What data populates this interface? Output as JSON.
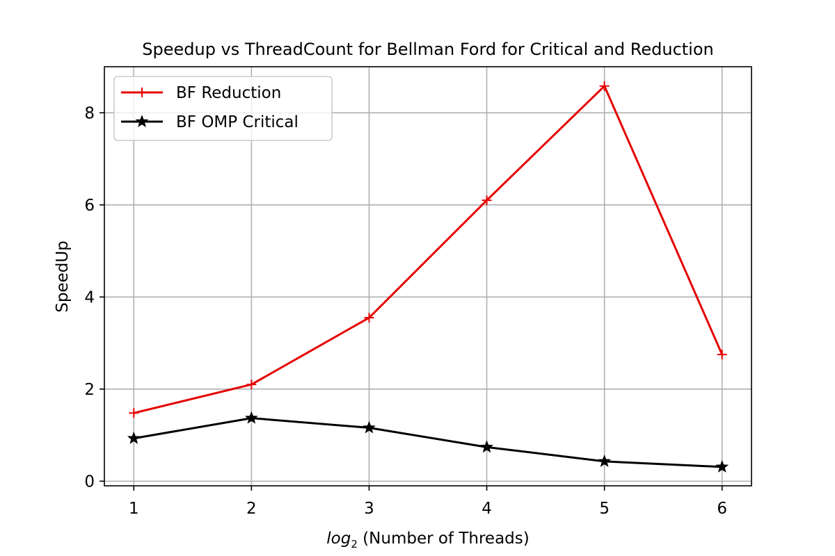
{
  "chart_data": {
    "type": "line",
    "title": "Speedup vs ThreadCount for Bellman Ford for Critical and Reduction",
    "xlabel": {
      "base": "log",
      "subscript": "2",
      "rest": " (Number of Threads)"
    },
    "ylabel": "SpeedUp",
    "x": [
      1,
      2,
      3,
      4,
      5,
      6
    ],
    "xlim": [
      0.75,
      6.25
    ],
    "ylim": [
      -0.1,
      9.0
    ],
    "xticks": [
      1,
      2,
      3,
      4,
      5,
      6
    ],
    "yticks": [
      0,
      2,
      4,
      6,
      8
    ],
    "grid": true,
    "legend_position": "top-left",
    "series": [
      {
        "name": "BF Reduction",
        "values": [
          1.48,
          2.1,
          3.55,
          6.1,
          8.58,
          2.75
        ],
        "color": "#e50000",
        "marker": "plus"
      },
      {
        "name": "BF OMP Critical",
        "values": [
          0.93,
          1.37,
          1.16,
          0.74,
          0.43,
          0.31
        ],
        "color": "#000000",
        "marker": "star"
      }
    ]
  }
}
